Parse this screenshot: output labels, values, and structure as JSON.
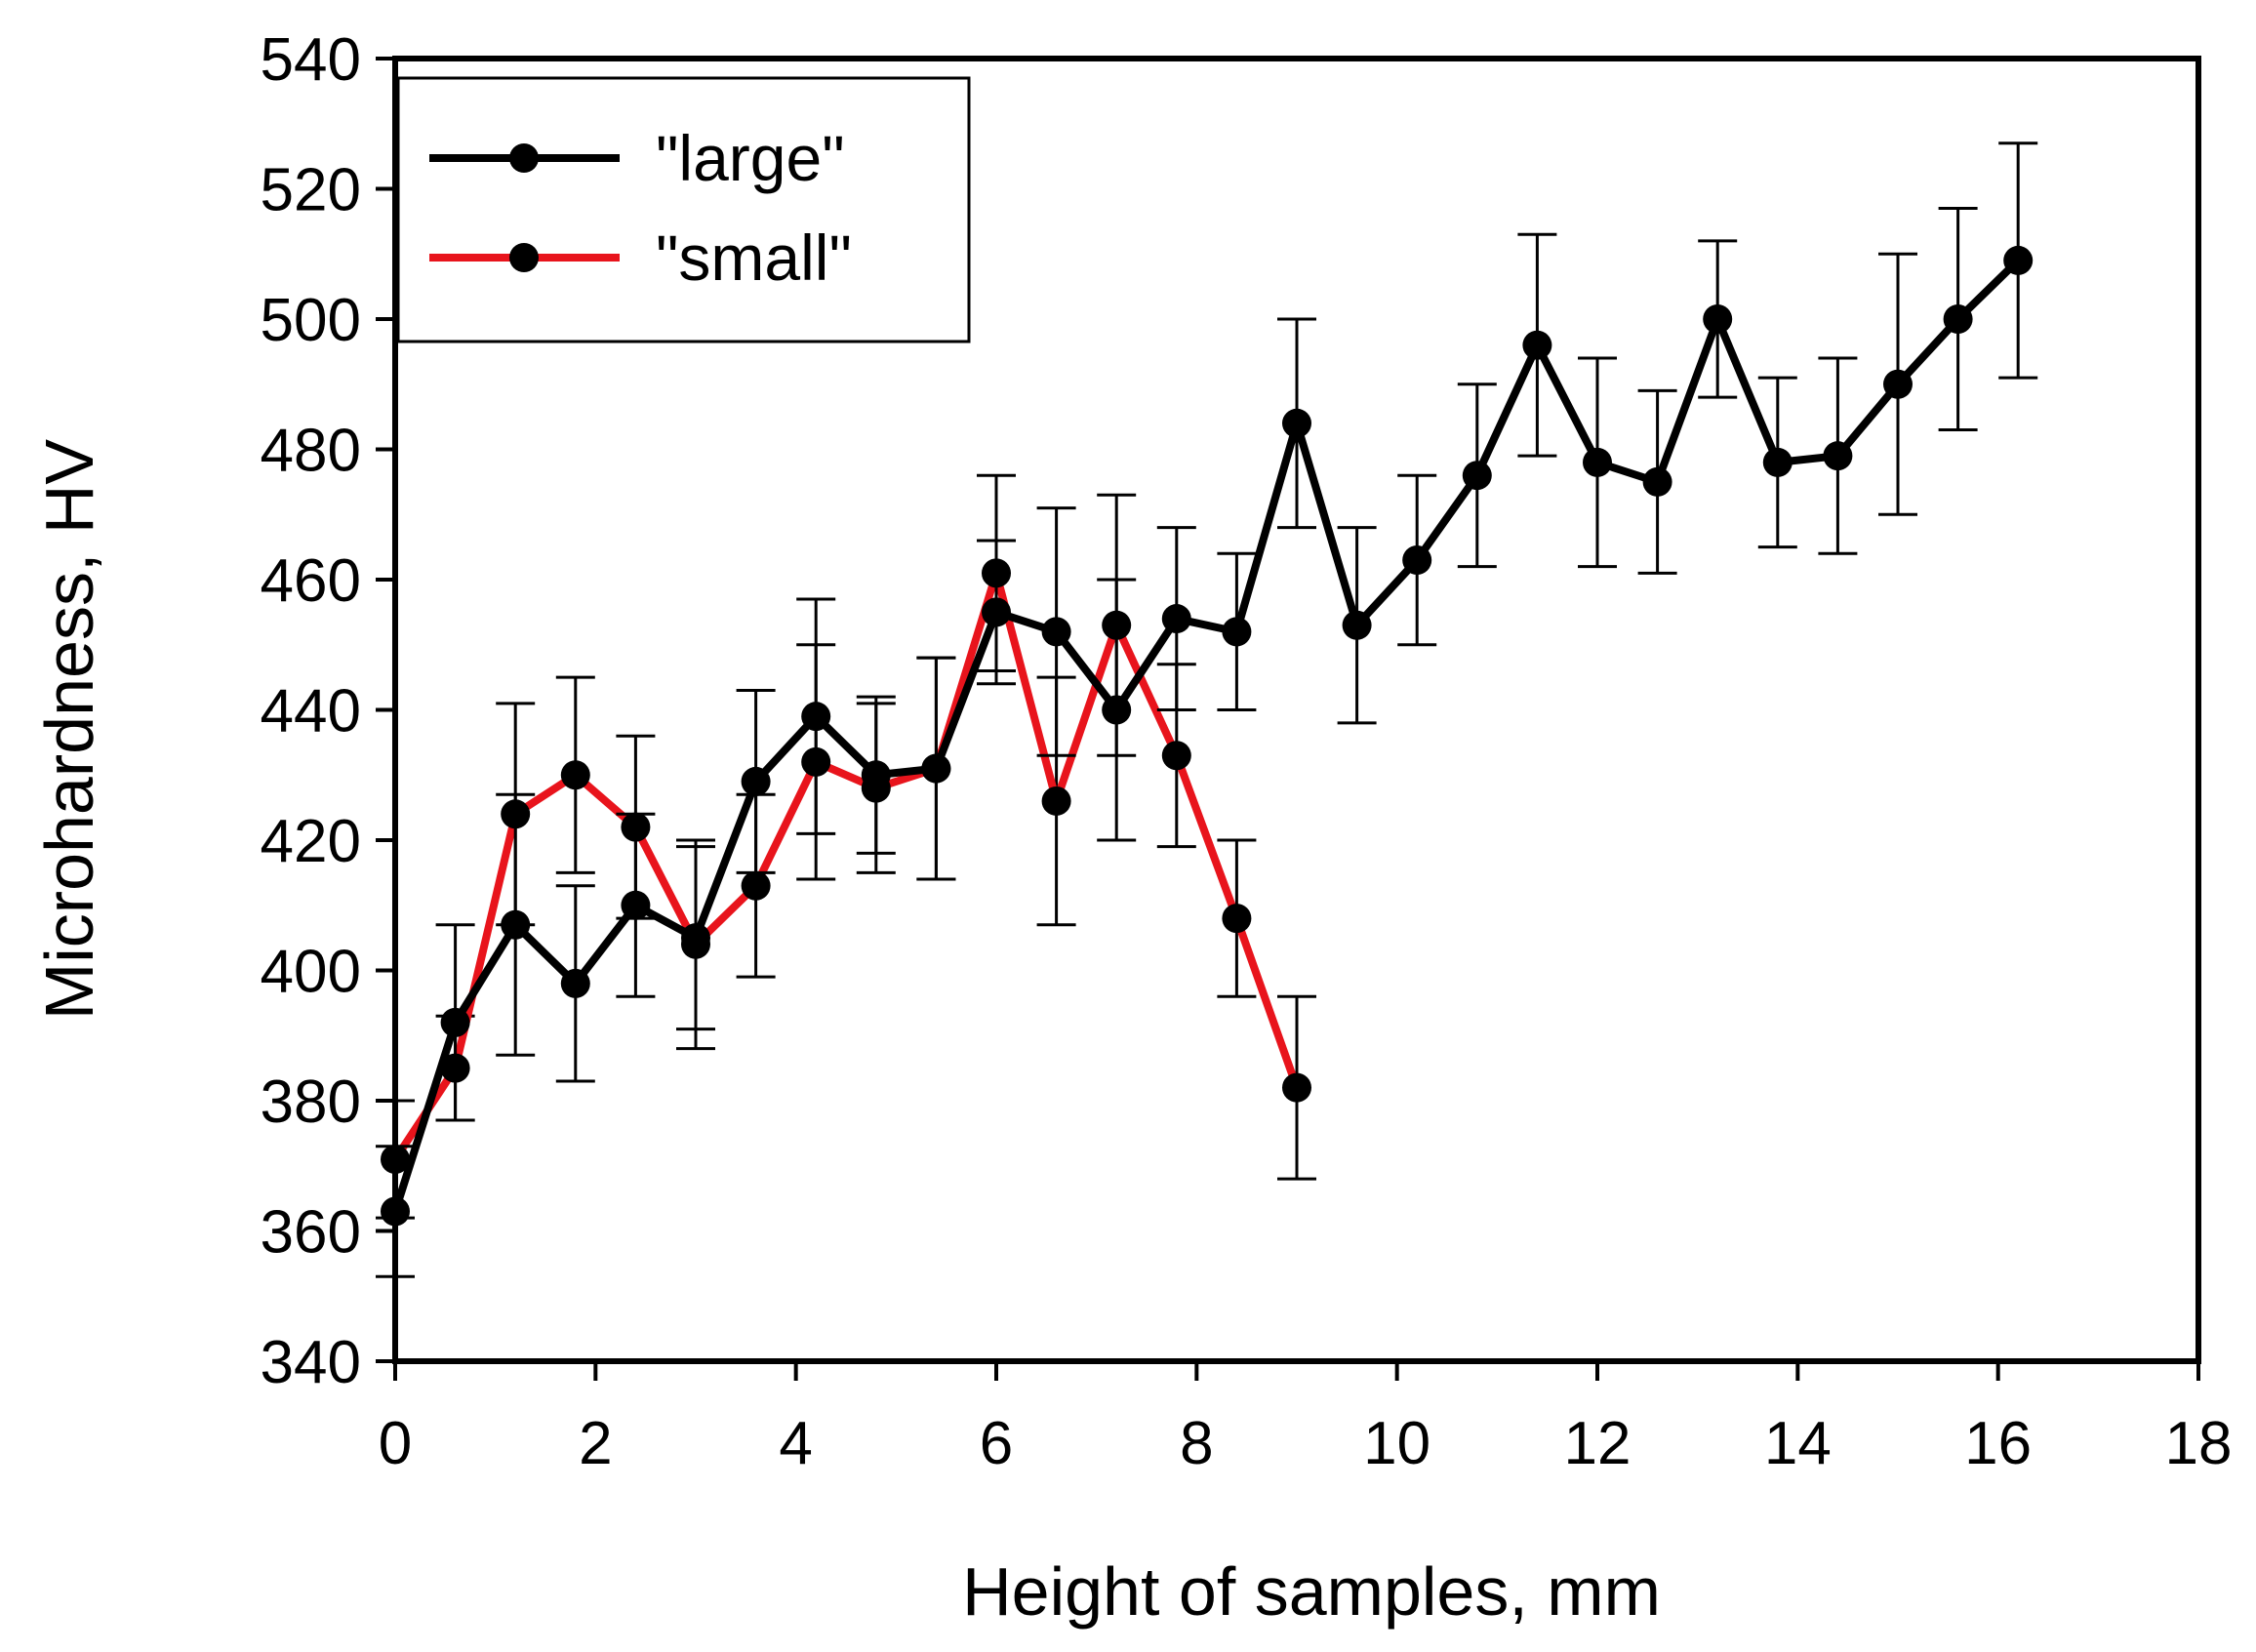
{
  "chart_data": {
    "type": "line",
    "title": "",
    "xlabel": "Height of samples, mm",
    "ylabel": "Microhardness, HV",
    "xlim": [
      0,
      18
    ],
    "ylim": [
      340,
      540
    ],
    "xticks": [
      0,
      2,
      4,
      6,
      8,
      10,
      12,
      14,
      16,
      18
    ],
    "yticks": [
      340,
      360,
      380,
      400,
      420,
      440,
      460,
      480,
      500,
      520,
      540
    ],
    "grid": false,
    "legend_position": "top-left",
    "series": [
      {
        "name": "\"large\"",
        "color": "#000000",
        "x": [
          0,
          0.6,
          1.2,
          1.8,
          2.4,
          3.0,
          3.6,
          4.2,
          4.8,
          5.4,
          6.0,
          6.6,
          7.2,
          7.8,
          8.4,
          9.0,
          9.6,
          10.2,
          10.8,
          11.4,
          12.0,
          12.6,
          13.2,
          13.8,
          14.4,
          15.0,
          15.6,
          16.2
        ],
        "y": [
          363,
          392,
          407,
          398,
          410,
          405,
          429,
          439,
          430,
          431,
          455,
          452,
          440,
          454,
          452,
          484,
          453,
          463,
          476,
          496,
          478,
          475,
          500,
          478,
          479,
          490,
          500,
          509
        ],
        "err": [
          10,
          15,
          20,
          15,
          14,
          14,
          14,
          18,
          12,
          17,
          11,
          19,
          20,
          14,
          12,
          16,
          15,
          13,
          14,
          17,
          16,
          14,
          12,
          13,
          15,
          20,
          17,
          18
        ]
      },
      {
        "name": "\"small\"",
        "color": "#e8141c",
        "x": [
          0,
          0.6,
          1.2,
          1.8,
          2.4,
          3.0,
          3.6,
          4.2,
          4.8,
          5.4,
          6.0,
          6.6,
          7.2,
          7.8,
          8.4,
          9.0
        ],
        "y": [
          371,
          385,
          424,
          430,
          422,
          404,
          413,
          432,
          428,
          431,
          461,
          426,
          453,
          433,
          408,
          382
        ],
        "err": [
          9,
          8,
          17,
          15,
          14,
          16,
          14,
          18,
          13,
          17,
          15,
          19,
          20,
          14,
          12,
          14
        ]
      }
    ]
  }
}
